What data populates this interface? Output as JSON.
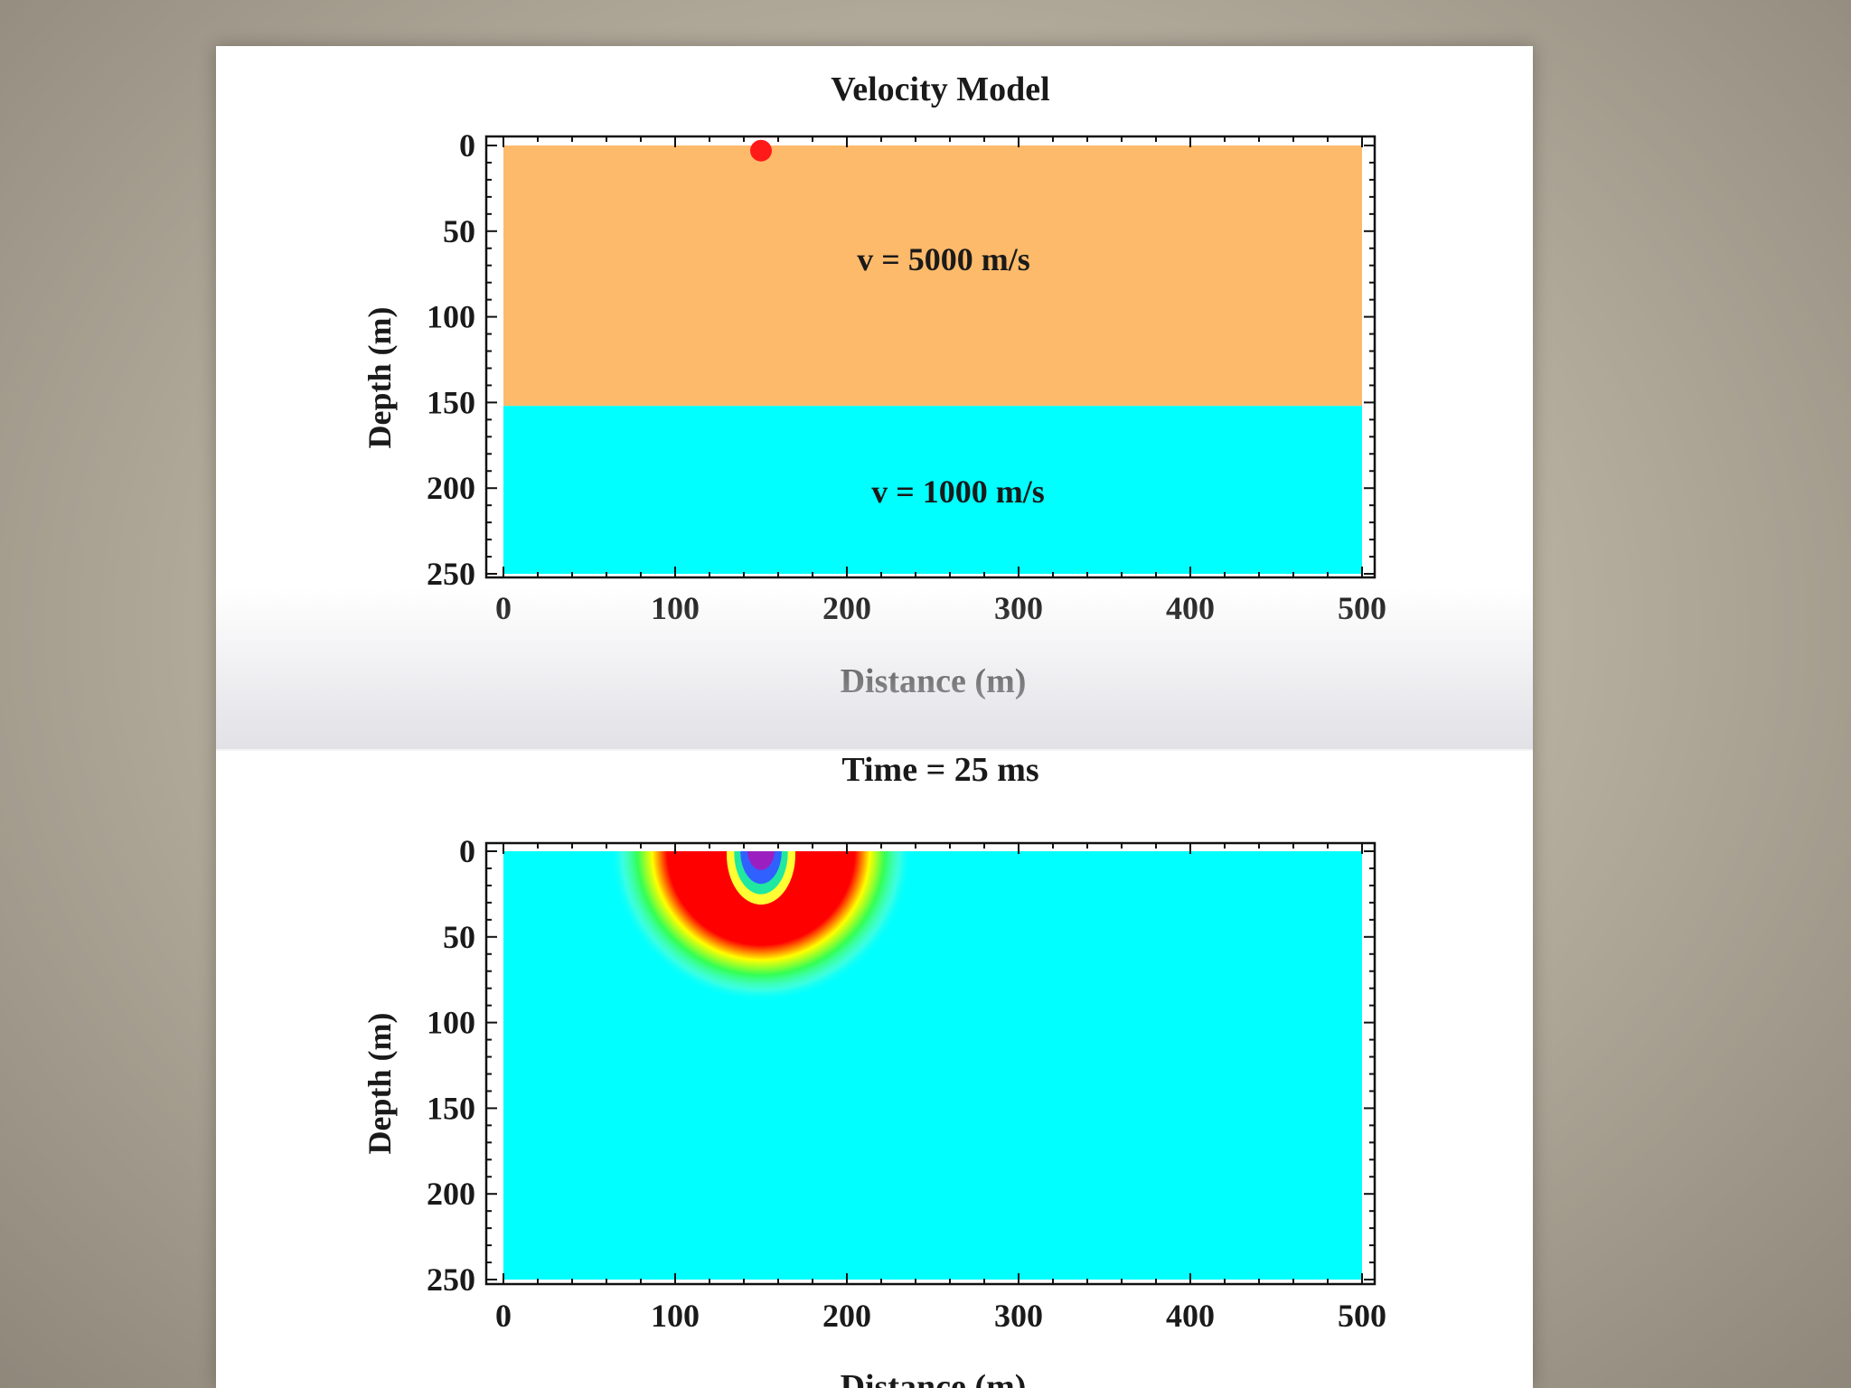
{
  "chart_data": [
    {
      "type": "heatmap",
      "title": "Velocity Model",
      "xlabel": "Distance (m)",
      "ylabel": "Depth (m)",
      "xlim": [
        0,
        500
      ],
      "ylim": [
        0,
        250
      ],
      "y_inverted": true,
      "xticks": [
        0,
        100,
        200,
        300,
        400,
        500
      ],
      "yticks": [
        0,
        50,
        100,
        150,
        200,
        250
      ],
      "layers": [
        {
          "label": "v = 5000 m/s",
          "velocity": 5000,
          "depth_top": 0,
          "depth_bottom": 152,
          "color": "#fdba6a"
        },
        {
          "label": "v = 1000 m/s",
          "velocity": 1000,
          "depth_top": 152,
          "depth_bottom": 250,
          "color": "#00ffff"
        }
      ],
      "source": {
        "x": 150,
        "depth": 3,
        "color": "#ff1a1a"
      }
    },
    {
      "type": "heatmap",
      "title": "Time = 25 ms",
      "xlabel": "Distance (m)",
      "ylabel": "Depth (m)",
      "xlim": [
        0,
        500
      ],
      "ylim": [
        0,
        250
      ],
      "y_inverted": true,
      "xticks": [
        0,
        100,
        200,
        300,
        400,
        500
      ],
      "yticks": [
        0,
        50,
        100,
        150,
        200,
        250
      ],
      "background_color": "#00ffff",
      "wavefront": {
        "x": 150,
        "depth": 0,
        "outer_radius": 88,
        "inner_radius": 20
      }
    }
  ]
}
